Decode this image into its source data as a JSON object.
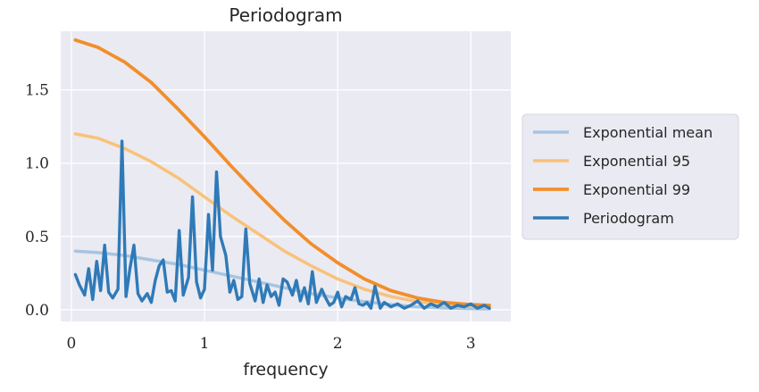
{
  "chart_data": {
    "type": "line",
    "title": "Periodogram",
    "xlabel": "frequency",
    "ylabel": "",
    "xlim": [
      -0.08,
      3.3
    ],
    "ylim": [
      -0.08,
      1.9
    ],
    "xticks": [
      0,
      1,
      2,
      3
    ],
    "xtick_labels": [
      "0",
      "1",
      "2",
      "3"
    ],
    "yticks": [
      0.0,
      0.5,
      1.0,
      1.5
    ],
    "ytick_labels": [
      "0.0",
      "0.5",
      "1.0",
      "1.5"
    ],
    "grid": true,
    "legend_position": "outside-right",
    "colors": {
      "background": "#eaeaf2",
      "grid": "#ffffff",
      "exp_mean": "#a6c5e0",
      "exp_95": "#f9c27a",
      "exp_99": "#f28e2b",
      "periodogram": "#2f7ab8"
    },
    "series": [
      {
        "name": "Exponential mean",
        "x": [
          0.03,
          0.2,
          0.4,
          0.6,
          0.8,
          1.0,
          1.2,
          1.4,
          1.6,
          1.8,
          2.0,
          2.2,
          2.4,
          2.6,
          2.8,
          3.0,
          3.14
        ],
        "values": [
          0.4,
          0.39,
          0.37,
          0.34,
          0.31,
          0.27,
          0.23,
          0.19,
          0.15,
          0.11,
          0.08,
          0.055,
          0.035,
          0.02,
          0.012,
          0.008,
          0.006
        ]
      },
      {
        "name": "Exponential 95",
        "x": [
          0.03,
          0.2,
          0.4,
          0.6,
          0.8,
          1.0,
          1.2,
          1.4,
          1.6,
          1.8,
          2.0,
          2.2,
          2.4,
          2.6,
          2.8,
          3.0,
          3.14
        ],
        "values": [
          1.2,
          1.17,
          1.1,
          1.01,
          0.9,
          0.77,
          0.64,
          0.52,
          0.4,
          0.3,
          0.21,
          0.14,
          0.09,
          0.055,
          0.035,
          0.025,
          0.02
        ]
      },
      {
        "name": "Exponential 99",
        "x": [
          0.03,
          0.2,
          0.4,
          0.6,
          0.8,
          1.0,
          1.2,
          1.4,
          1.6,
          1.8,
          2.0,
          2.2,
          2.4,
          2.6,
          2.8,
          3.0,
          3.14
        ],
        "values": [
          1.84,
          1.79,
          1.69,
          1.55,
          1.37,
          1.18,
          0.98,
          0.79,
          0.61,
          0.45,
          0.32,
          0.21,
          0.13,
          0.08,
          0.05,
          0.035,
          0.03
        ]
      },
      {
        "name": "Periodogram",
        "x": [
          0.03,
          0.06,
          0.1,
          0.13,
          0.16,
          0.19,
          0.22,
          0.25,
          0.28,
          0.31,
          0.35,
          0.38,
          0.41,
          0.44,
          0.47,
          0.5,
          0.53,
          0.57,
          0.6,
          0.63,
          0.66,
          0.69,
          0.72,
          0.75,
          0.78,
          0.81,
          0.84,
          0.88,
          0.91,
          0.94,
          0.97,
          1.0,
          1.03,
          1.06,
          1.09,
          1.12,
          1.16,
          1.19,
          1.22,
          1.25,
          1.28,
          1.31,
          1.34,
          1.38,
          1.41,
          1.44,
          1.47,
          1.5,
          1.53,
          1.56,
          1.59,
          1.62,
          1.66,
          1.69,
          1.72,
          1.75,
          1.78,
          1.81,
          1.84,
          1.88,
          1.91,
          1.94,
          1.97,
          2.0,
          2.03,
          2.06,
          2.1,
          2.13,
          2.16,
          2.19,
          2.22,
          2.25,
          2.28,
          2.32,
          2.35,
          2.4,
          2.45,
          2.5,
          2.55,
          2.6,
          2.65,
          2.7,
          2.75,
          2.8,
          2.85,
          2.9,
          2.95,
          3.0,
          3.05,
          3.1,
          3.14
        ],
        "values": [
          0.24,
          0.17,
          0.1,
          0.28,
          0.07,
          0.33,
          0.13,
          0.44,
          0.12,
          0.08,
          0.14,
          1.15,
          0.09,
          0.28,
          0.44,
          0.11,
          0.06,
          0.11,
          0.05,
          0.2,
          0.3,
          0.34,
          0.12,
          0.13,
          0.06,
          0.54,
          0.1,
          0.22,
          0.77,
          0.19,
          0.08,
          0.14,
          0.65,
          0.27,
          0.94,
          0.5,
          0.37,
          0.12,
          0.2,
          0.07,
          0.09,
          0.55,
          0.18,
          0.06,
          0.21,
          0.05,
          0.17,
          0.09,
          0.12,
          0.03,
          0.21,
          0.19,
          0.1,
          0.2,
          0.06,
          0.15,
          0.04,
          0.26,
          0.05,
          0.14,
          0.08,
          0.03,
          0.05,
          0.12,
          0.02,
          0.09,
          0.07,
          0.15,
          0.04,
          0.03,
          0.05,
          0.01,
          0.16,
          0.01,
          0.05,
          0.02,
          0.04,
          0.01,
          0.03,
          0.06,
          0.01,
          0.04,
          0.02,
          0.05,
          0.01,
          0.03,
          0.02,
          0.04,
          0.01,
          0.03,
          0.01
        ]
      }
    ]
  }
}
